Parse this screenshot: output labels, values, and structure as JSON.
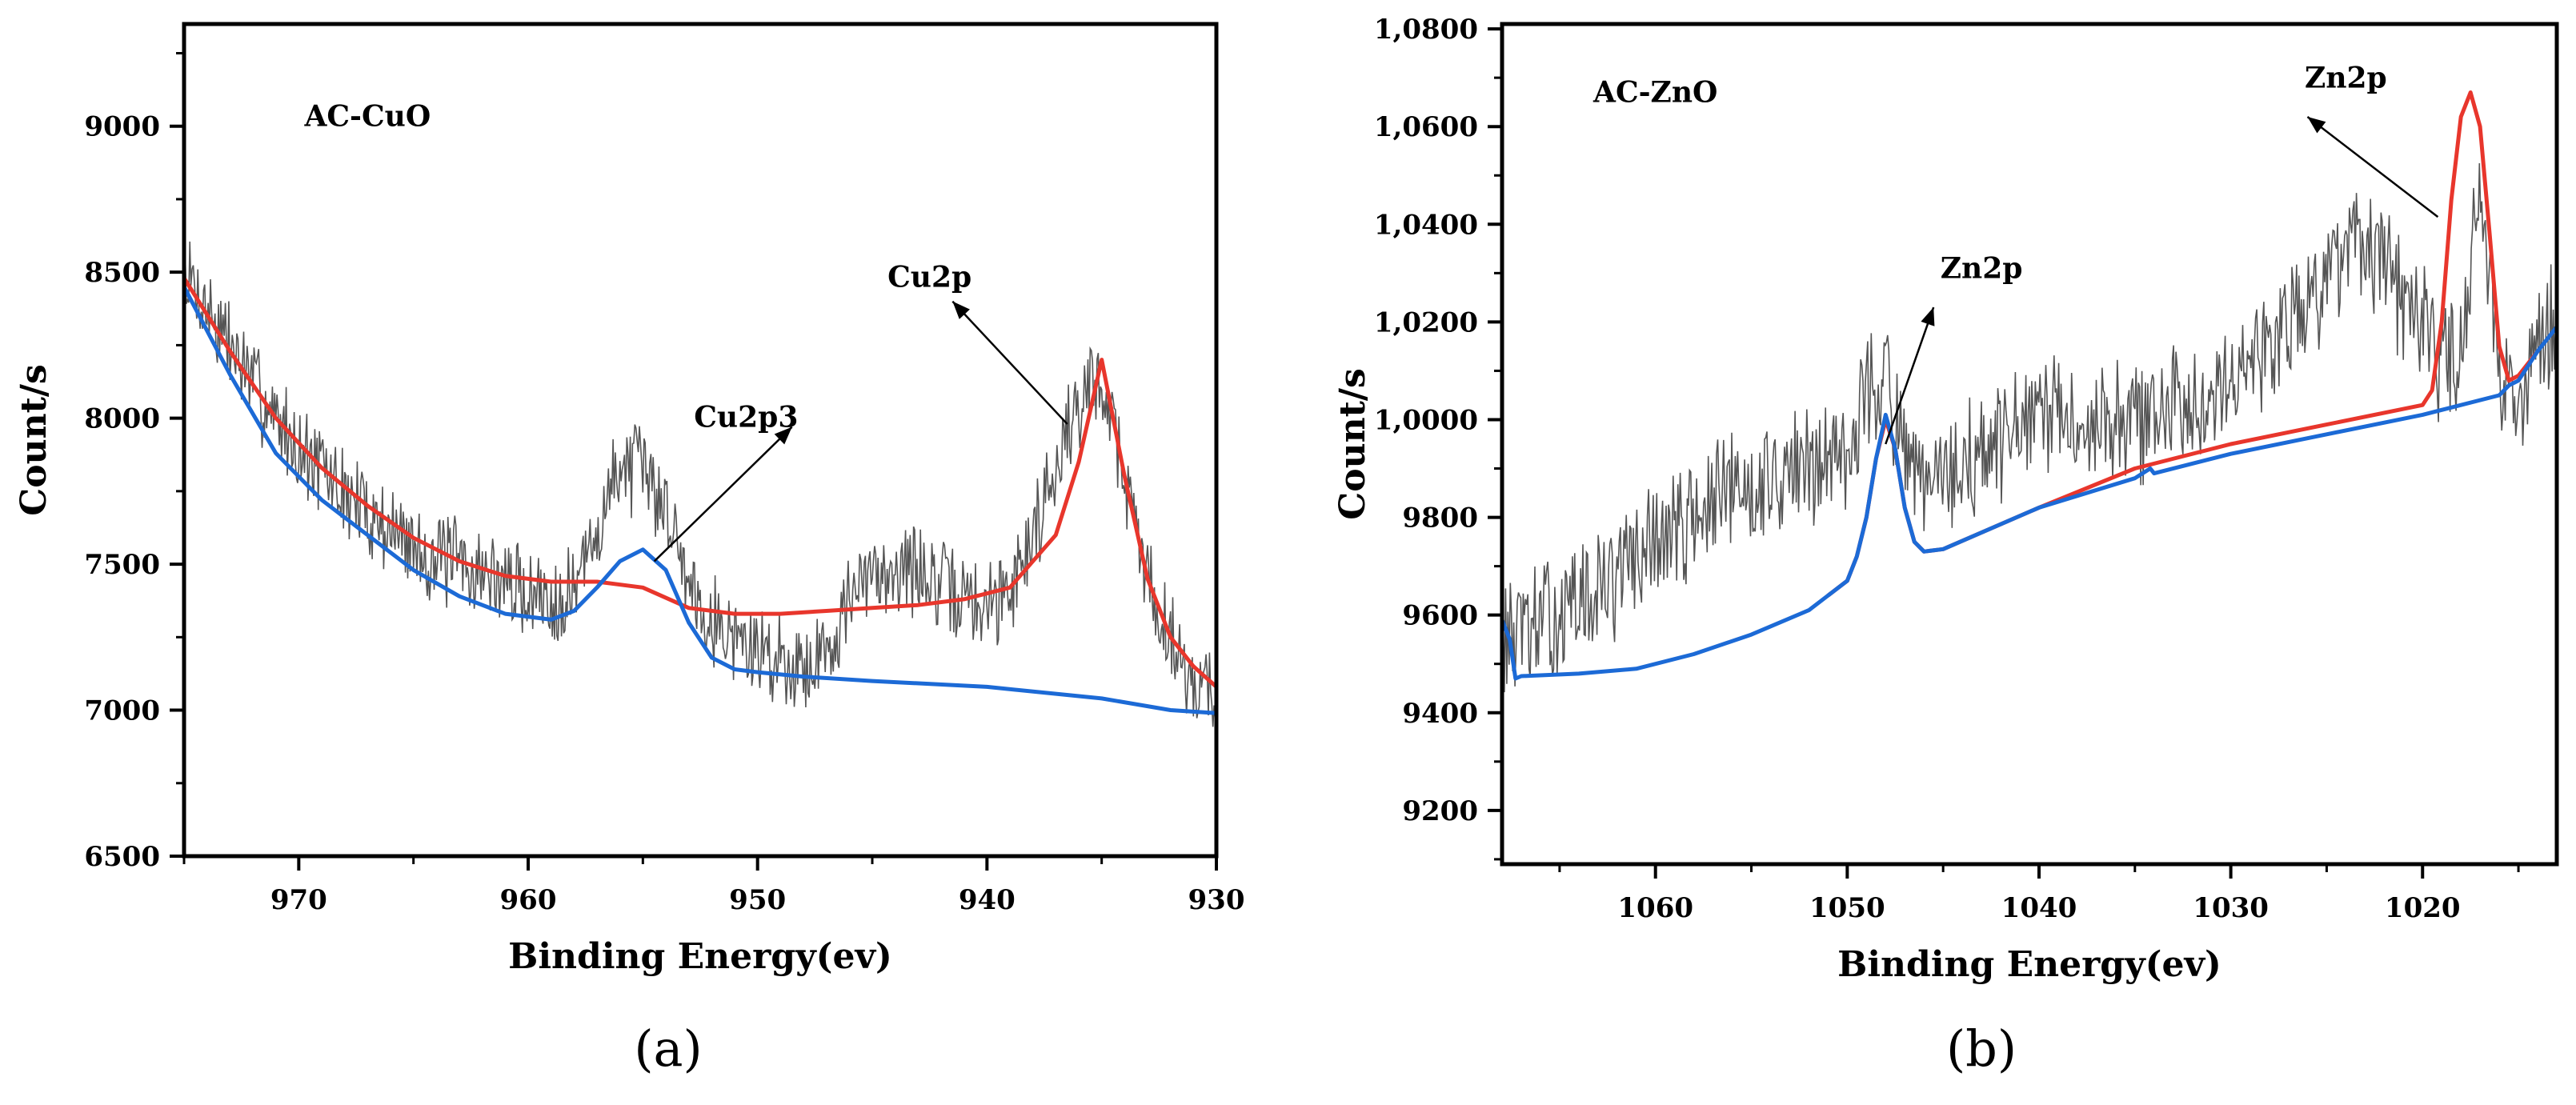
{
  "chart_data": [
    {
      "type": "line",
      "panel_label": "(a)",
      "xlabel": "Binding Energy(ev)",
      "ylabel": "Count/s",
      "xlim": [
        975,
        930
      ],
      "ylim": [
        6500,
        9350
      ],
      "x_reversed": true,
      "xticks": [
        970,
        960,
        950,
        940,
        930
      ],
      "yticks": [
        6500,
        7000,
        7500,
        8000,
        8500,
        9000
      ],
      "ytick_labels": [
        "6500",
        "7000",
        "7500",
        "8000",
        "8500",
        "9000"
      ],
      "grid": false,
      "annotations": [
        {
          "text": "AC-CuO",
          "x": 967,
          "y": 9000
        },
        {
          "text": "Cu2p",
          "x": 942.5,
          "y": 8450,
          "arrow_from": [
            936.5,
            7980
          ],
          "arrow_to": [
            941.5,
            8400
          ]
        },
        {
          "text": "Cu2p3",
          "x": 950.5,
          "y": 7970,
          "arrow_from": [
            954.5,
            7510
          ],
          "arrow_to": [
            948.5,
            7970
          ]
        }
      ],
      "series": [
        {
          "role": "raw",
          "color": "#555555",
          "x": [
            975,
            974,
            973,
            972,
            971,
            970,
            969,
            968,
            967,
            966,
            965,
            964,
            963,
            962,
            961,
            960,
            959,
            958,
            957,
            956,
            955,
            954,
            953,
            952,
            951,
            950,
            949,
            948,
            947,
            946,
            945,
            944,
            943,
            942,
            941,
            940,
            939,
            938,
            937,
            936,
            935,
            934,
            933,
            932,
            931,
            930
          ],
          "y": [
            8500,
            8380,
            8250,
            8120,
            8000,
            7900,
            7820,
            7740,
            7680,
            7620,
            7560,
            7520,
            7500,
            7470,
            7440,
            7400,
            7380,
            7420,
            7600,
            7850,
            7820,
            7700,
            7450,
            7320,
            7250,
            7200,
            7180,
            7150,
            7200,
            7380,
            7450,
            7500,
            7480,
            7420,
            7380,
            7350,
            7420,
            7600,
            7850,
            8050,
            8150,
            7800,
            7450,
            7250,
            7100,
            7050
          ]
        },
        {
          "role": "envelope",
          "color": "#e8362c",
          "x": [
            975,
            973,
            971,
            969,
            967,
            965,
            963,
            961,
            959,
            957,
            955,
            953,
            951,
            949,
            947,
            945,
            943,
            941,
            939,
            937,
            936,
            935,
            934,
            933,
            932,
            931,
            930
          ],
          "y": [
            8480,
            8230,
            8000,
            7830,
            7700,
            7590,
            7510,
            7460,
            7440,
            7440,
            7420,
            7350,
            7330,
            7330,
            7340,
            7350,
            7360,
            7380,
            7420,
            7600,
            7850,
            8200,
            7800,
            7450,
            7250,
            7150,
            7080
          ]
        },
        {
          "role": "background",
          "color": "#1c6ad6",
          "x": [
            975,
            973,
            971,
            969,
            967,
            965,
            963,
            961,
            959,
            958,
            957,
            956,
            955,
            954,
            953,
            952,
            951,
            950,
            948,
            945,
            940,
            935,
            932,
            930
          ],
          "y": [
            8450,
            8150,
            7880,
            7720,
            7600,
            7480,
            7390,
            7330,
            7310,
            7340,
            7420,
            7510,
            7550,
            7480,
            7300,
            7180,
            7140,
            7130,
            7115,
            7100,
            7080,
            7040,
            7000,
            6990
          ]
        }
      ]
    },
    {
      "type": "line",
      "panel_label": "(b)",
      "xlabel": "Binding Energy(ev)",
      "ylabel": "Count/s",
      "xlim": [
        1068,
        1013
      ],
      "ylim": [
        9090,
        10810
      ],
      "x_reversed": true,
      "xticks": [
        1060,
        1050,
        1040,
        1030,
        1020
      ],
      "yticks": [
        9200,
        9400,
        9600,
        9800,
        10000,
        10200,
        10400,
        10600,
        10800
      ],
      "ytick_labels": [
        "9200",
        "9400",
        "9600",
        "9800",
        "1,0000",
        "1,0200",
        "1,0400",
        "1,0600",
        "1,0800"
      ],
      "grid": false,
      "annotations": [
        {
          "text": "AC-ZnO",
          "x": 1060,
          "y": 10650
        },
        {
          "text": "Zn2p",
          "x": 1024,
          "y": 10680,
          "arrow_from": [
            1019.2,
            10415
          ],
          "arrow_to": [
            1026,
            10620
          ]
        },
        {
          "text": "Zn2p",
          "x": 1043,
          "y": 10290,
          "arrow_from": [
            1048,
            9950
          ],
          "arrow_to": [
            1045.5,
            10230
          ]
        }
      ],
      "series": [
        {
          "role": "raw",
          "color": "#555555",
          "x": [
            1068,
            1066,
            1064,
            1062,
            1060,
            1058,
            1056,
            1054,
            1052,
            1050,
            1049,
            1048,
            1047,
            1046,
            1044,
            1042,
            1040,
            1038,
            1036,
            1034,
            1032,
            1030,
            1028,
            1026,
            1024,
            1022,
            1020,
            1019,
            1018,
            1017,
            1016,
            1015,
            1014,
            1013
          ],
          "y": [
            9550,
            9580,
            9620,
            9680,
            9750,
            9800,
            9850,
            9880,
            9900,
            9950,
            10050,
            10100,
            9900,
            9850,
            9900,
            9950,
            10000,
            10000,
            10000,
            10000,
            10050,
            10100,
            10150,
            10250,
            10350,
            10300,
            10200,
            10100,
            10150,
            10500,
            10100,
            10050,
            10150,
            10200
          ]
        },
        {
          "role": "envelope",
          "color": "#e8362c",
          "x": [
            1051,
            1050,
            1049.5,
            1049,
            1048.5,
            1048,
            1047.5,
            1047,
            1046.5,
            1046,
            1045,
            1040,
            1035,
            1030,
            1025,
            1020,
            1019.5,
            1019,
            1018.5,
            1018,
            1017.5,
            1017,
            1016.5,
            1016,
            1015.5,
            1015,
            1014
          ],
          "y": [
            9640,
            9670,
            9720,
            9800,
            9920,
            10000,
            9940,
            9820,
            9750,
            9730,
            9735,
            9820,
            9900,
            9950,
            9990,
            10030,
            10060,
            10200,
            10450,
            10620,
            10670,
            10600,
            10380,
            10150,
            10080,
            10090,
            10140
          ]
        },
        {
          "role": "background",
          "color": "#1c6ad6",
          "x": [
            1068,
            1067.6,
            1067.3,
            1067,
            1064,
            1061,
            1058,
            1055,
            1052,
            1051,
            1050,
            1049.5,
            1049,
            1048.5,
            1048,
            1047.5,
            1047,
            1046.5,
            1046,
            1045,
            1040,
            1035,
            1034.2,
            1034,
            1030,
            1025,
            1020,
            1016,
            1015.5,
            1015,
            1014,
            1013
          ],
          "y": [
            9590,
            9550,
            9470,
            9475,
            9480,
            9490,
            9520,
            9560,
            9610,
            9640,
            9670,
            9720,
            9800,
            9920,
            10010,
            9940,
            9820,
            9750,
            9730,
            9735,
            9820,
            9880,
            9900,
            9890,
            9930,
            9970,
            10010,
            10050,
            10070,
            10080,
            10140,
            10190
          ]
        }
      ]
    }
  ]
}
